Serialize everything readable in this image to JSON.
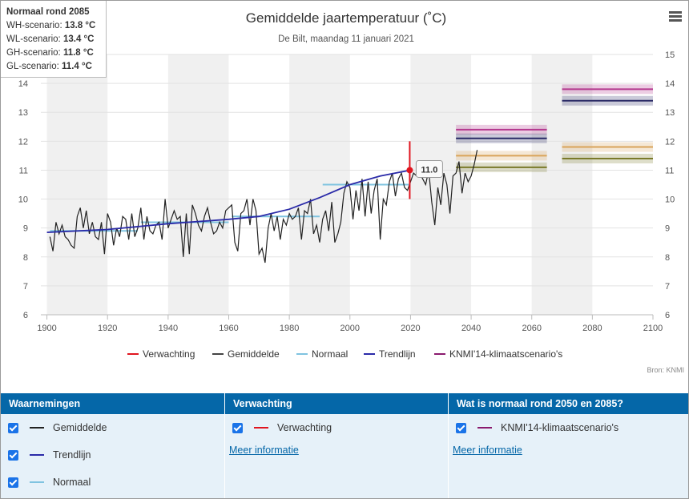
{
  "chart_data": {
    "type": "line",
    "title": "Gemiddelde jaartemperatuur (˚C)",
    "subtitle": "De Bilt, maandag 11 januari 2021",
    "xlim": [
      1898,
      2100
    ],
    "ylim": [
      6,
      15
    ],
    "x_ticks": [
      "1900",
      "1920",
      "1940",
      "1960",
      "1980",
      "2000",
      "2020",
      "2040",
      "2060",
      "2080",
      "2100"
    ],
    "y_ticks_left": [
      "6",
      "7",
      "8",
      "9",
      "10",
      "11",
      "12",
      "13",
      "14"
    ],
    "y_ticks_right": [
      "6",
      "7",
      "8",
      "9",
      "10",
      "11",
      "12",
      "13",
      "14",
      "15"
    ],
    "series": [
      {
        "name": "Gemiddelde",
        "color": "#222222",
        "x_start": 1901,
        "values": [
          8.7,
          8.2,
          9.2,
          8.8,
          9.1,
          8.7,
          8.6,
          8.4,
          8.3,
          9.4,
          9.7,
          9.0,
          9.6,
          8.8,
          9.2,
          8.7,
          8.6,
          9.2,
          8.1,
          9.5,
          9.2,
          8.4,
          9.0,
          8.7,
          9.4,
          9.3,
          8.6,
          9.5,
          8.7,
          9.0,
          9.7,
          8.6,
          9.4,
          8.9,
          8.8,
          9.1,
          9.2,
          8.6,
          10.0,
          9.0,
          9.3,
          9.6,
          9.3,
          9.4,
          8.0,
          9.5,
          8.1,
          9.8,
          9.5,
          9.1,
          8.9,
          9.4,
          9.7,
          9.2,
          8.8,
          8.9,
          9.2,
          9.0,
          9.6,
          9.7,
          9.8,
          8.5,
          8.2,
          9.5,
          9.6,
          10.0,
          9.1,
          10.0,
          9.6,
          8.1,
          8.3,
          7.8,
          9.0,
          9.5,
          8.9,
          9.4,
          8.6,
          9.3,
          9.1,
          9.5,
          9.3,
          9.4,
          9.7,
          8.6,
          9.6,
          9.5,
          10.0,
          8.8,
          9.1,
          8.5,
          9.3,
          9.6,
          8.9,
          9.9,
          8.5,
          8.8,
          9.2,
          10.2,
          10.6,
          10.4,
          9.3,
          10.3,
          9.6,
          10.7,
          9.4,
          10.6,
          9.5,
          10.3,
          10.7,
          8.6,
          10.0,
          9.8,
          10.6,
          10.9,
          10.1,
          10.7,
          10.9,
          10.4,
          10.3,
          10.6,
          10.9,
          10.8,
          10.9,
          10.7,
          10.5,
          11.0,
          9.9,
          9.1,
          10.4,
          9.8,
          10.9,
          10.5,
          9.5,
          10.8,
          10.9,
          11.3,
          10.2,
          10.9,
          10.6,
          10.8,
          11.2,
          11.7
        ]
      },
      {
        "name": "Normaal",
        "color": "#7fc3e0",
        "segments": [
          {
            "from": 1901,
            "to": 1930,
            "value": 8.9
          },
          {
            "from": 1931,
            "to": 1960,
            "value": 9.2
          },
          {
            "from": 1961,
            "to": 1990,
            "value": 9.4
          },
          {
            "from": 1991,
            "to": 2020,
            "value": 10.5
          }
        ]
      },
      {
        "name": "Trendlijn",
        "color": "#2a2aa8",
        "x": [
          1900,
          1920,
          1940,
          1960,
          1970,
          1980,
          1990,
          2000,
          2010,
          2020
        ],
        "values": [
          8.85,
          8.95,
          9.15,
          9.3,
          9.4,
          9.65,
          10.05,
          10.5,
          10.8,
          11.0
        ]
      },
      {
        "name": "Verwachting",
        "color": "#e0151f",
        "x": 2020,
        "value": 11.0,
        "low": 10.0,
        "high": 12.0,
        "label": "11.0"
      },
      {
        "name": "KNMI'14-klimaatscenario's",
        "color": "#8a1a6e",
        "groups": [
          {
            "from": 2035,
            "to": 2065,
            "scenarios": [
              {
                "name": "WH",
                "value": 12.4,
                "color": "#b4388e"
              },
              {
                "name": "WL",
                "value": 12.1,
                "color": "#2a2a66"
              },
              {
                "name": "GH",
                "value": 11.5,
                "color": "#d9a45a"
              },
              {
                "name": "GL",
                "value": 11.1,
                "color": "#7a7a2a"
              }
            ]
          },
          {
            "from": 2070,
            "to": 2100,
            "scenarios": [
              {
                "name": "WH",
                "value": 13.8,
                "color": "#b4388e"
              },
              {
                "name": "WL",
                "value": 13.4,
                "color": "#2a2a66"
              },
              {
                "name": "GH",
                "value": 11.8,
                "color": "#d9a45a"
              },
              {
                "name": "GL",
                "value": 11.4,
                "color": "#7a7a2a"
              }
            ]
          }
        ]
      }
    ],
    "legend": [
      "Verwachting",
      "Gemiddelde",
      "Normaal",
      "Trendlijn",
      "KNMI'14-klimaatscenario's"
    ],
    "legend_position": "bottom",
    "credit": "Bron: KNMI"
  },
  "tooltip": {
    "title": "Normaal rond 2085",
    "rows": [
      {
        "label": "WH-scenario:",
        "value": "13.8 °C"
      },
      {
        "label": "WL-scenario:",
        "value": "13.4 °C"
      },
      {
        "label": "GH-scenario:",
        "value": "11.8 °C"
      },
      {
        "label": "GL-scenario:",
        "value": "11.4 °C"
      }
    ]
  },
  "panels": {
    "waarnemingen": {
      "title": "Waarnemingen",
      "items": [
        {
          "label": "Gemiddelde",
          "color": "#222222"
        },
        {
          "label": "Trendlijn",
          "color": "#2a2aa8"
        },
        {
          "label": "Normaal",
          "color": "#7fc3e0"
        }
      ]
    },
    "verwachting": {
      "title": "Verwachting",
      "items": [
        {
          "label": "Verwachting",
          "color": "#e0151f"
        }
      ],
      "link": "Meer informatie"
    },
    "scenarios": {
      "title": "Wat is normaal rond 2050 en 2085?",
      "items": [
        {
          "label": "KNMI'14-klimaatscenario's",
          "color": "#8a1a6e"
        }
      ],
      "link": "Meer informatie"
    }
  }
}
